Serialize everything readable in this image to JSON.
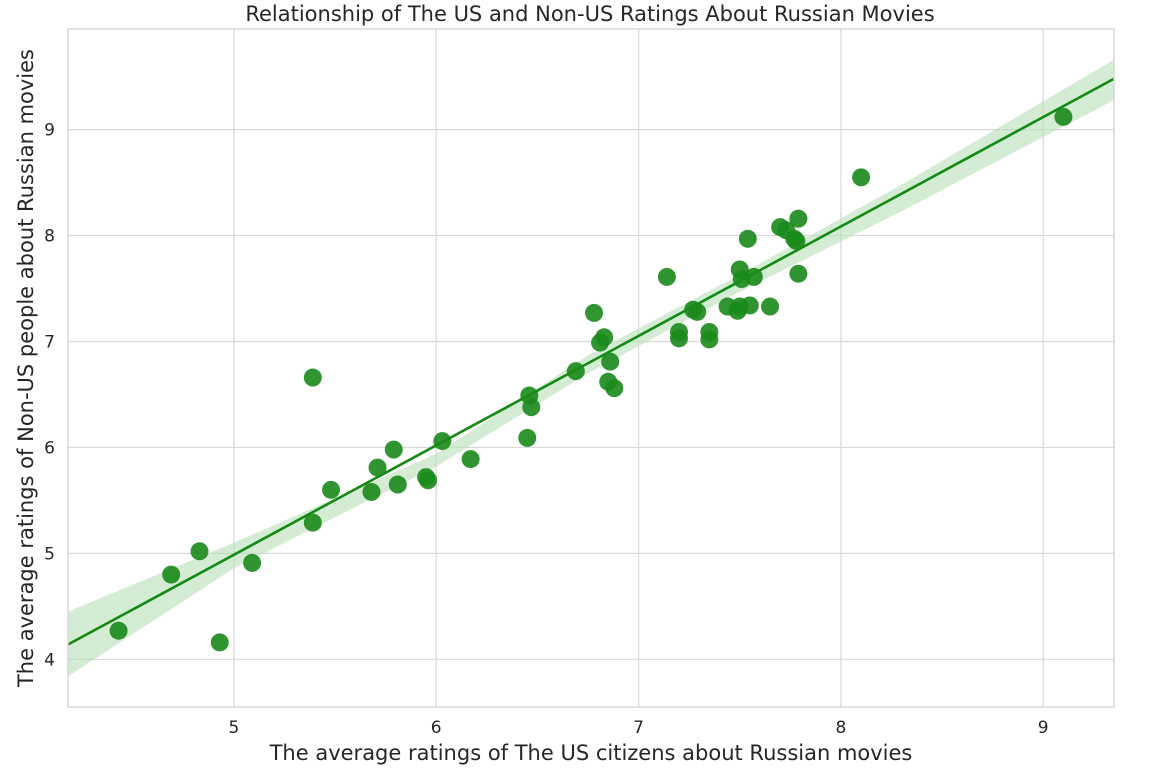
{
  "chart_data": {
    "type": "scatter",
    "title": "Relationship of The US and Non-US Ratings About Russian Movies",
    "xlabel": "The average ratings of The US citizens about Russian movies",
    "ylabel": "The average ratings of Non-US people about Russian movies",
    "xlim": [
      4.18,
      9.35
    ],
    "ylim": [
      3.55,
      9.95
    ],
    "xticks": [
      "5",
      "6",
      "7",
      "8",
      "9"
    ],
    "yticks": [
      "4",
      "5",
      "6",
      "7",
      "8",
      "9"
    ],
    "grid": true,
    "colors": {
      "points": "#1a8a1a",
      "line": "#138a13",
      "band": "#b8ddb8"
    },
    "regression": {
      "line": [
        [
          4.18,
          4.14
        ],
        [
          9.35,
          9.48
        ]
      ],
      "band_upper": [
        [
          4.18,
          4.45
        ],
        [
          5.0,
          5.1
        ],
        [
          6.0,
          5.94
        ],
        [
          6.75,
          6.87
        ],
        [
          7.5,
          7.63
        ],
        [
          8.3,
          8.48
        ],
        [
          9.35,
          9.66
        ]
      ],
      "band_lower": [
        [
          4.18,
          3.84
        ],
        [
          5.0,
          4.86
        ],
        [
          6.0,
          5.82
        ],
        [
          6.75,
          6.7
        ],
        [
          7.5,
          7.47
        ],
        [
          8.3,
          8.23
        ],
        [
          9.35,
          9.28
        ]
      ]
    },
    "points": [
      [
        4.43,
        4.27
      ],
      [
        4.69,
        4.8
      ],
      [
        4.83,
        5.02
      ],
      [
        4.93,
        4.16
      ],
      [
        5.09,
        4.91
      ],
      [
        5.39,
        6.66
      ],
      [
        5.39,
        5.29
      ],
      [
        5.48,
        5.6
      ],
      [
        5.68,
        5.58
      ],
      [
        5.71,
        5.81
      ],
      [
        5.79,
        5.98
      ],
      [
        5.81,
        5.65
      ],
      [
        5.95,
        5.72
      ],
      [
        5.96,
        5.69
      ],
      [
        6.03,
        6.06
      ],
      [
        6.17,
        5.89
      ],
      [
        6.45,
        6.09
      ],
      [
        6.46,
        6.49
      ],
      [
        6.47,
        6.38
      ],
      [
        6.69,
        6.72
      ],
      [
        6.78,
        7.27
      ],
      [
        6.81,
        6.99
      ],
      [
        6.83,
        7.04
      ],
      [
        6.85,
        6.62
      ],
      [
        6.86,
        6.81
      ],
      [
        6.88,
        6.56
      ],
      [
        7.14,
        7.61
      ],
      [
        7.2,
        7.03
      ],
      [
        7.2,
        7.09
      ],
      [
        7.27,
        7.3
      ],
      [
        7.29,
        7.28
      ],
      [
        7.35,
        7.09
      ],
      [
        7.35,
        7.02
      ],
      [
        7.44,
        7.33
      ],
      [
        7.49,
        7.29
      ],
      [
        7.5,
        7.33
      ],
      [
        7.5,
        7.68
      ],
      [
        7.51,
        7.59
      ],
      [
        7.54,
        7.97
      ],
      [
        7.55,
        7.34
      ],
      [
        7.57,
        7.61
      ],
      [
        7.65,
        7.33
      ],
      [
        7.7,
        8.08
      ],
      [
        7.73,
        8.05
      ],
      [
        7.77,
        7.97
      ],
      [
        7.78,
        7.95
      ],
      [
        7.79,
        8.16
      ],
      [
        7.79,
        7.64
      ],
      [
        8.1,
        8.55
      ],
      [
        9.1,
        9.12
      ]
    ]
  }
}
